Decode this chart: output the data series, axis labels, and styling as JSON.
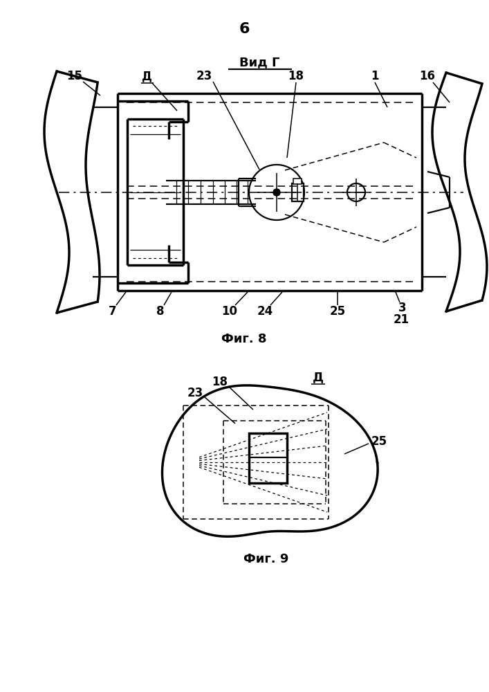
{
  "page_number": "6",
  "fig8_label": "Фиг. 8",
  "fig9_label": "Фиг. 9",
  "vid_g_label": "Вид Г",
  "d_label": "Д",
  "bg_color": "#ffffff",
  "line_color": "#000000"
}
